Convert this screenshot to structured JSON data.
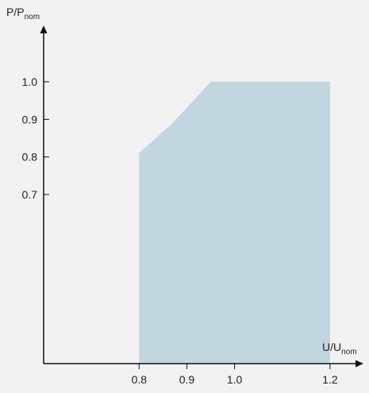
{
  "chart_data": {
    "type": "area",
    "title": "",
    "ylabel": {
      "main": "P/P",
      "sub": "nom"
    },
    "xlabel": {
      "main": "U/U",
      "sub": "nom"
    },
    "xlim": [
      0.6,
      1.27
    ],
    "ylim": [
      0.25,
      1.15
    ],
    "x_ticks": [
      {
        "value": 0.8,
        "label": "0.8"
      },
      {
        "value": 0.9,
        "label": "0.9"
      },
      {
        "value": 1.0,
        "label": "1.0"
      },
      {
        "value": 1.2,
        "label": "1.2"
      }
    ],
    "y_ticks": [
      {
        "value": 0.7,
        "label": "0.7"
      },
      {
        "value": 0.8,
        "label": "0.8"
      },
      {
        "value": 0.9,
        "label": "0.9"
      },
      {
        "value": 1.0,
        "label": "1.0"
      }
    ],
    "series": [
      {
        "boundary": [
          {
            "x": 0.8,
            "y": 0.81
          },
          {
            "x": 0.87,
            "y": 0.89
          },
          {
            "x": 0.95,
            "y": 1.0
          },
          {
            "x": 1.2,
            "y": 1.0
          }
        ]
      }
    ],
    "grid": false,
    "fill_color": "#c2d6e0",
    "axis_color": "#111111"
  }
}
